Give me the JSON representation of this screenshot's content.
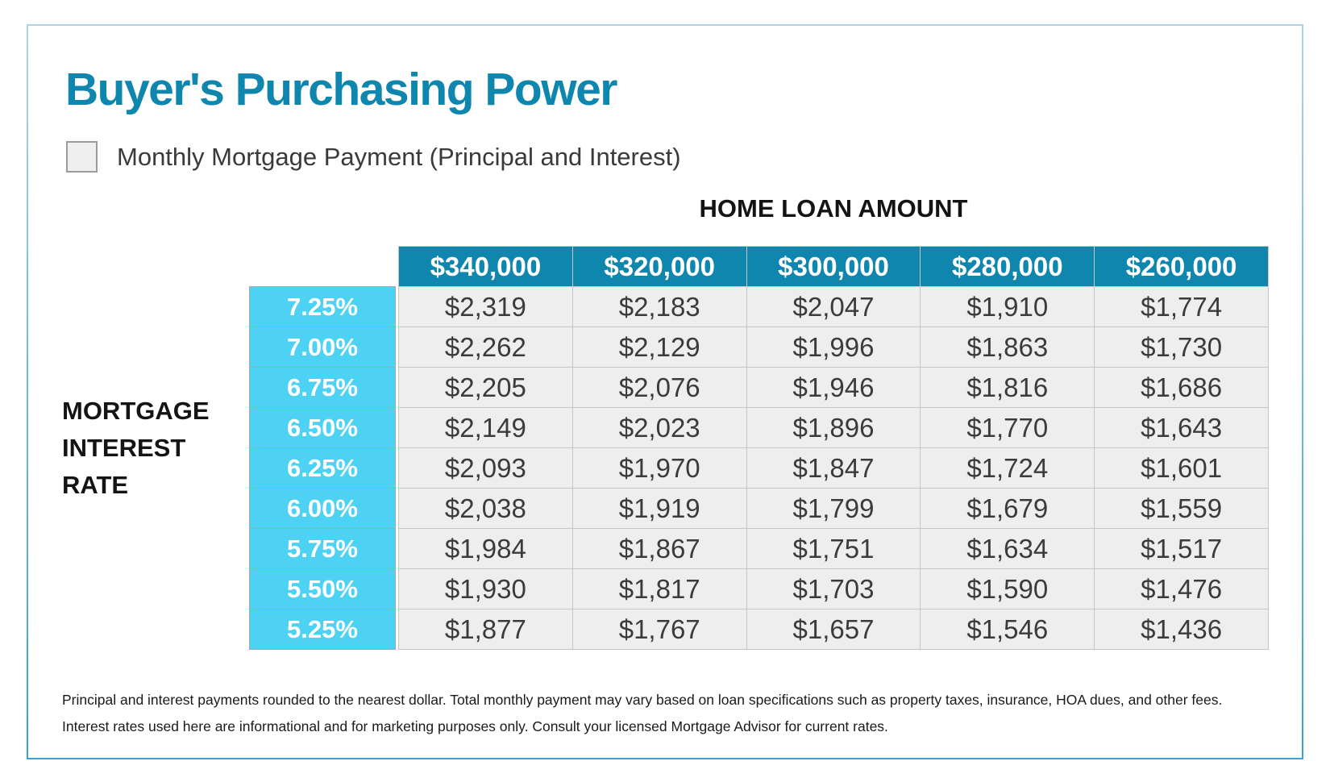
{
  "page": {
    "title": "Buyer's Purchasing Power",
    "legend_label": "Monthly Mortgage Payment (Principal and Interest)"
  },
  "colors": {
    "title_teal": "#0e86ae",
    "header_teal": "#0f86ad",
    "rate_cyan": "#4dd2f4",
    "cell_gray": "#eeeeee",
    "frame_blue_top": "#a9d6e4",
    "frame_blue_bottom": "#38a6c8"
  },
  "chart_data": {
    "type": "table",
    "title": "Buyer's Purchasing Power",
    "legend": "Monthly Mortgage Payment (Principal and Interest)",
    "column_group_label": "HOME LOAN AMOUNT",
    "row_group_label": "MORTGAGE INTEREST RATE",
    "row_group_label_lines": [
      "MORTGAGE",
      "INTEREST",
      "RATE"
    ],
    "columns": [
      "$340,000",
      "$320,000",
      "$300,000",
      "$280,000",
      "$260,000"
    ],
    "row_labels": [
      "7.25%",
      "7.00%",
      "6.75%",
      "6.50%",
      "6.25%",
      "6.00%",
      "5.75%",
      "5.50%",
      "5.25%"
    ],
    "rows": [
      [
        "$2,319",
        "$2,183",
        "$2,047",
        "$1,910",
        "$1,774"
      ],
      [
        "$2,262",
        "$2,129",
        "$1,996",
        "$1,863",
        "$1,730"
      ],
      [
        "$2,205",
        "$2,076",
        "$1,946",
        "$1,816",
        "$1,686"
      ],
      [
        "$2,149",
        "$2,023",
        "$1,896",
        "$1,770",
        "$1,643"
      ],
      [
        "$2,093",
        "$1,970",
        "$1,847",
        "$1,724",
        "$1,601"
      ],
      [
        "$2,038",
        "$1,919",
        "$1,799",
        "$1,679",
        "$1,559"
      ],
      [
        "$1,984",
        "$1,867",
        "$1,751",
        "$1,634",
        "$1,517"
      ],
      [
        "$1,930",
        "$1,817",
        "$1,703",
        "$1,590",
        "$1,476"
      ],
      [
        "$1,877",
        "$1,767",
        "$1,657",
        "$1,546",
        "$1,436"
      ]
    ],
    "footnote_lines": [
      "Principal and interest payments rounded to the nearest dollar. Total monthly payment may vary based on loan specifications such as property taxes, insurance, HOA dues, and other fees.",
      "Interest rates used here are informational and for marketing purposes only. Consult your licensed Mortgage Advisor for current rates."
    ]
  }
}
